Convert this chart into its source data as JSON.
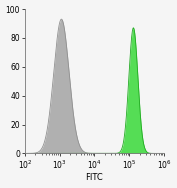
{
  "title": "",
  "xlabel": "FITC",
  "ylabel": "",
  "xlim_log": [
    2,
    6
  ],
  "ylim": [
    0,
    100
  ],
  "yticks": [
    0,
    20,
    40,
    60,
    80,
    100
  ],
  "xticks_log": [
    2,
    3,
    4,
    5,
    6
  ],
  "gray_peak_log": 3.05,
  "gray_peak_height": 93,
  "gray_sigma": 0.22,
  "green_peak_log": 5.12,
  "green_peak_height": 87,
  "green_sigma": 0.13,
  "gray_color": "#b0b0b0",
  "gray_edge": "#909090",
  "green_color": "#55dd55",
  "green_edge": "#22aa22",
  "background_color": "#f5f5f5",
  "xlabel_fontsize": 6,
  "tick_fontsize": 5.5
}
